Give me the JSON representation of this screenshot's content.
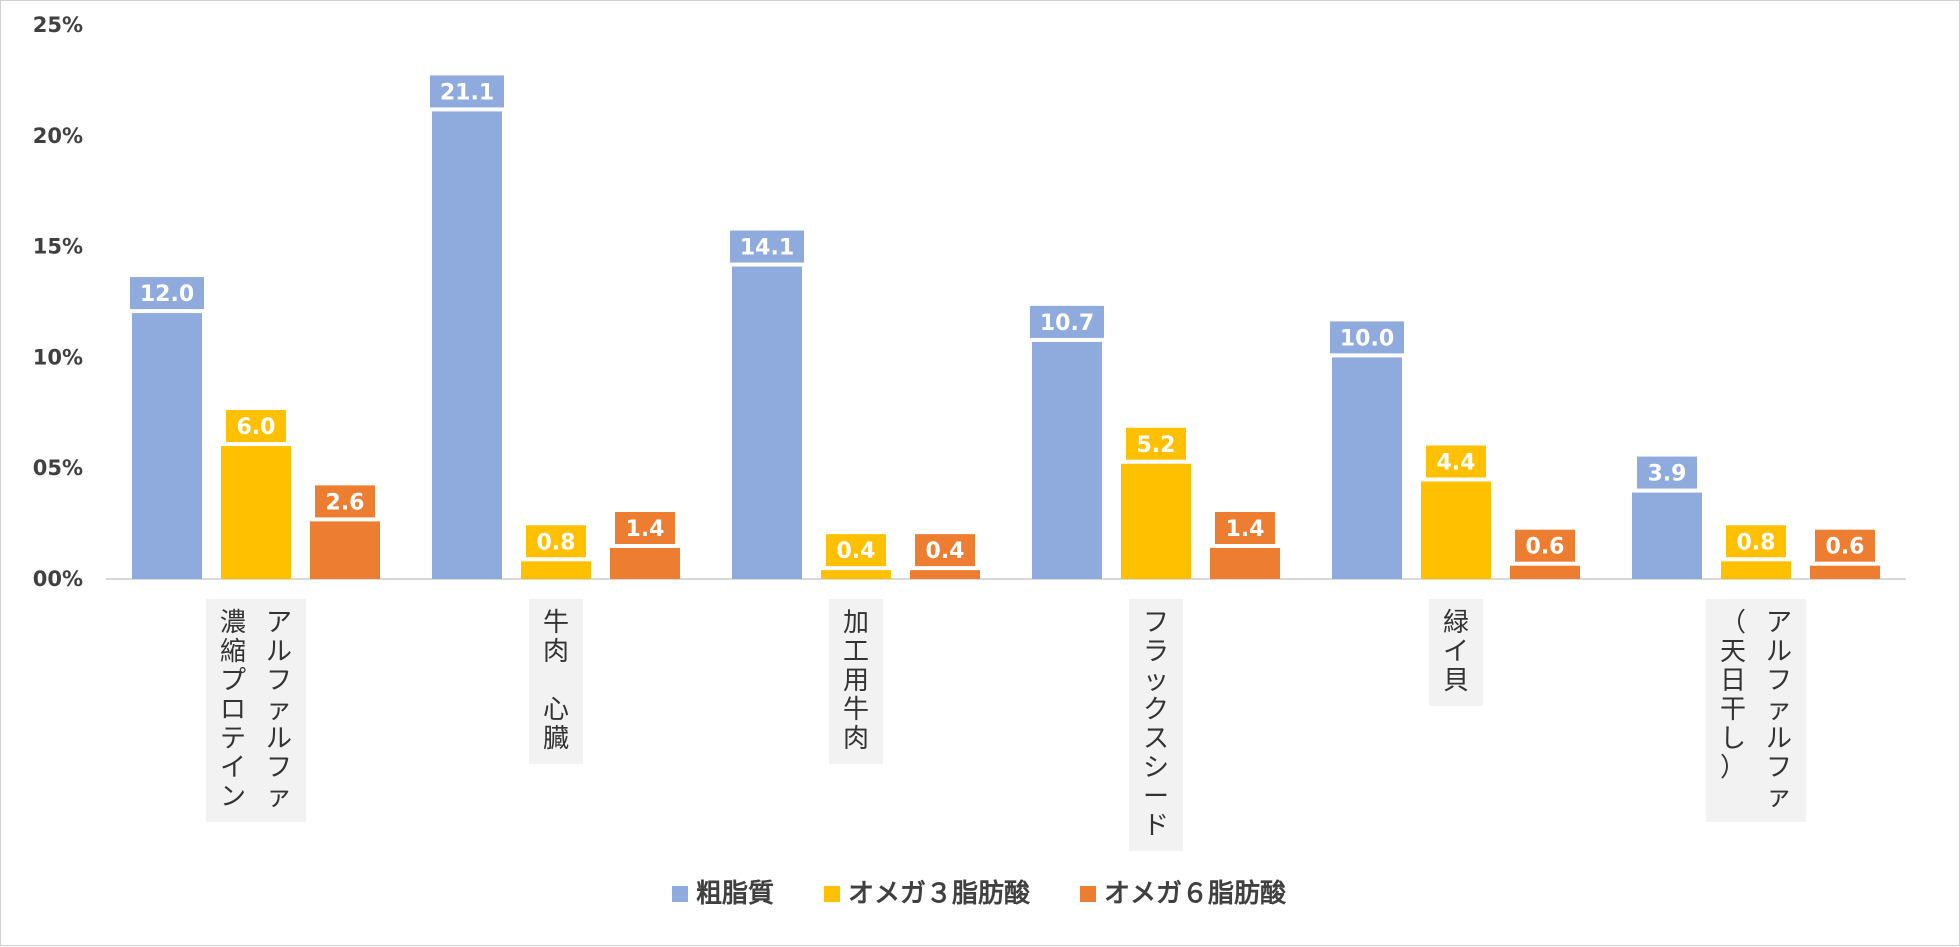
{
  "chart_data": {
    "type": "bar",
    "title": "",
    "xlabel": "",
    "ylabel": "",
    "ylim": [
      0,
      25
    ],
    "y_ticks": [
      {
        "value": 0,
        "label": "00%"
      },
      {
        "value": 5,
        "label": "05%"
      },
      {
        "value": 10,
        "label": "10%"
      },
      {
        "value": 15,
        "label": "15%"
      },
      {
        "value": 20,
        "label": "20%"
      },
      {
        "value": 25,
        "label": "25%"
      }
    ],
    "categories": [
      {
        "name": "アルファルファ濃縮プロテイン",
        "columns": [
          "アルファルファ",
          "濃縮プロテイン"
        ]
      },
      {
        "name": "牛肉 心臓",
        "columns": [
          "牛肉 心臓"
        ]
      },
      {
        "name": "加工用牛肉",
        "columns": [
          "加工用牛肉"
        ]
      },
      {
        "name": "フラックスシード",
        "columns": [
          "フラックスシード"
        ]
      },
      {
        "name": "緑イ貝",
        "columns": [
          "緑イ貝"
        ]
      },
      {
        "name": "アルファルファ（天日干し）",
        "columns": [
          "アルファルファ",
          "（天日干し）"
        ]
      }
    ],
    "series": [
      {
        "name": "粗脂質",
        "color": "#8faadc",
        "values": [
          12.0,
          21.1,
          14.1,
          10.7,
          10.0,
          3.9
        ],
        "labels": [
          "12.0",
          "21.1",
          "14.1",
          "10.7",
          "10.0",
          "3.9"
        ]
      },
      {
        "name": "オメガ３脂肪酸",
        "color": "#ffc000",
        "values": [
          6.0,
          0.8,
          0.4,
          5.2,
          4.4,
          0.8
        ],
        "labels": [
          "6.0",
          "0.8",
          "0.4",
          "5.2",
          "4.4",
          "0.8"
        ]
      },
      {
        "name": "オメガ６脂肪酸",
        "color": "#ed7d31",
        "values": [
          2.6,
          1.4,
          0.4,
          1.4,
          0.6,
          0.6
        ],
        "labels": [
          "2.6",
          "1.4",
          "0.4",
          "1.4",
          "0.6",
          "0.6"
        ]
      }
    ],
    "legend_position": "bottom",
    "grid": false
  }
}
